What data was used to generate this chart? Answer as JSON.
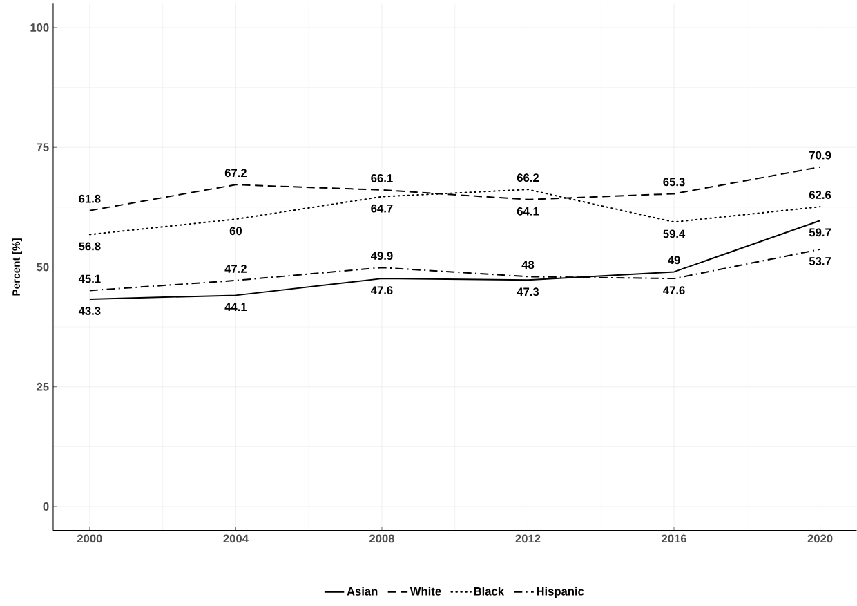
{
  "chart_data": {
    "type": "line",
    "ylabel": "Percent [%]",
    "x": [
      2000,
      2004,
      2008,
      2012,
      2016,
      2020
    ],
    "series": [
      {
        "name": "Asian",
        "color": "#000000",
        "line_style": "solid",
        "values": [
          43.3,
          44.1,
          47.6,
          47.3,
          49,
          59.7
        ]
      },
      {
        "name": "White",
        "color": "#000000",
        "line_style": "dashed",
        "values": [
          61.8,
          67.2,
          66.1,
          64.1,
          65.3,
          70.9
        ]
      },
      {
        "name": "Black",
        "color": "#000000",
        "line_style": "dotted",
        "values": [
          56.8,
          60,
          64.7,
          66.2,
          59.4,
          62.6
        ]
      },
      {
        "name": "Hispanic",
        "color": "#000000",
        "line_style": "dashdot",
        "values": [
          45.1,
          47.2,
          49.9,
          48,
          47.6,
          53.7
        ]
      }
    ],
    "xlim": [
      1999,
      2021
    ],
    "ylim": [
      -5,
      105
    ],
    "xticks": [
      2000,
      2004,
      2008,
      2012,
      2016,
      2020
    ],
    "yticks": [
      0,
      25,
      50,
      75,
      100
    ],
    "grid": true,
    "legend": "bottom",
    "data_labels": true
  }
}
